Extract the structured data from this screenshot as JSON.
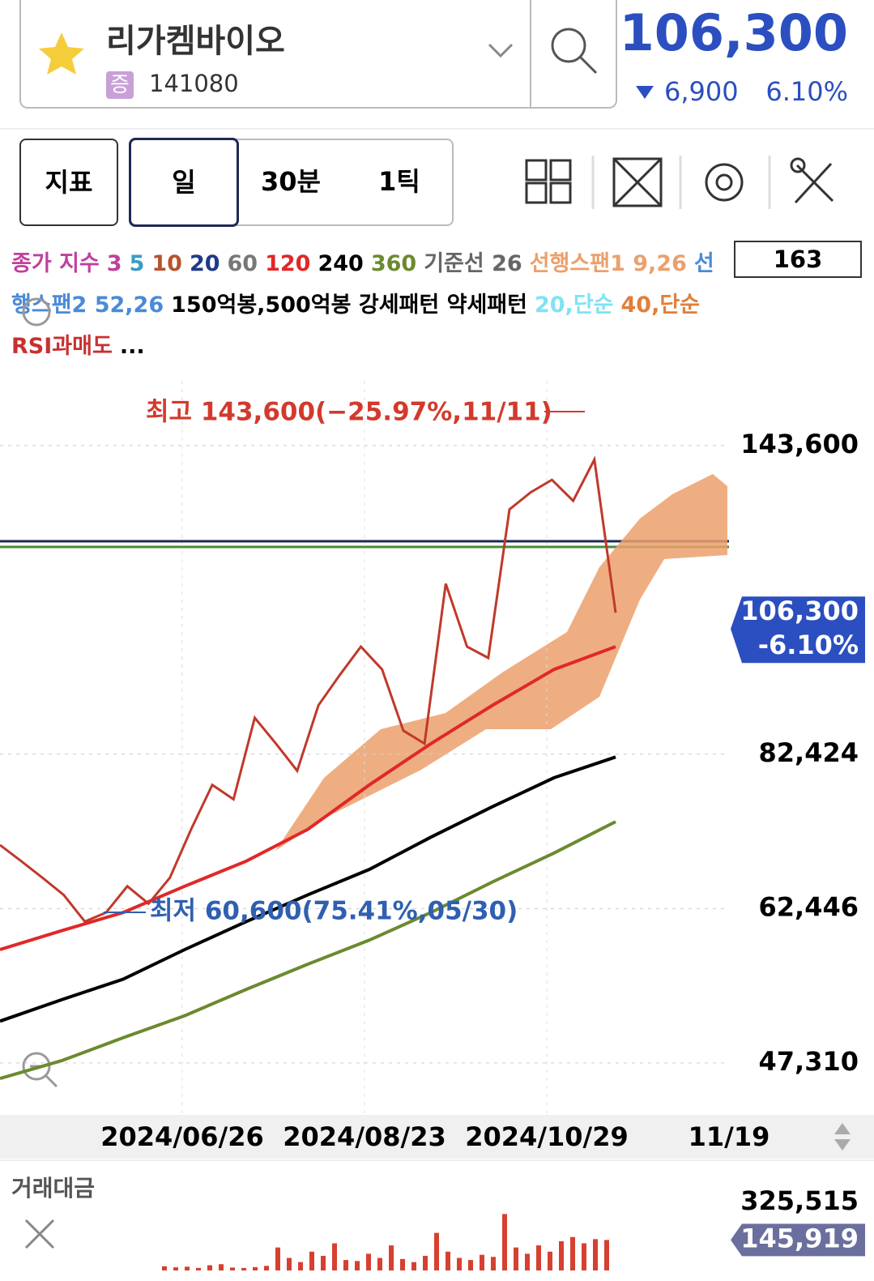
{
  "header": {
    "name": "리가켐바이오",
    "market_badge": "증",
    "code": "141080",
    "price": "106,300",
    "change": "6,900",
    "change_rate": "6.10%"
  },
  "toolbar": {
    "indicator_button": "지표",
    "periods": [
      "일",
      "30분",
      "1틱"
    ]
  },
  "legend": {
    "items": [
      {
        "text": "종가 지수",
        "color": "#c0409e"
      },
      {
        "text": "3",
        "color": "#c0409e"
      },
      {
        "text": "5",
        "color": "#3a9cc4"
      },
      {
        "text": "10",
        "color": "#b5542f"
      },
      {
        "text": "20",
        "color": "#1e3a8a"
      },
      {
        "text": "60",
        "color": "#777777"
      },
      {
        "text": "120",
        "color": "#e02828"
      },
      {
        "text": "240",
        "color": "#000000"
      },
      {
        "text": "360",
        "color": "#6b8a2f"
      },
      {
        "text": "기준선 26",
        "color": "#666666"
      },
      {
        "text": "선행스팬1 9,26",
        "color": "#eba06c"
      },
      {
        "text": "선행스팬2 52,26",
        "color": "#4a8ad8"
      },
      {
        "text": "150억봉,500억봉 강세패턴 약세패턴",
        "color": "#000000"
      },
      {
        "text": "20,단순",
        "color": "#7fe3f2"
      },
      {
        "text": "40,단순",
        "color": "#e07f3c"
      },
      {
        "text": "RSI과매도",
        "color": "#c83030"
      },
      {
        "text": "...",
        "color": "#000000"
      }
    ],
    "count": "163"
  },
  "chart_data": {
    "type": "line",
    "log_scale": true,
    "ylim": [
      43150,
      161300
    ],
    "yticks": [
      {
        "value": 143600,
        "label": "143,600"
      },
      {
        "value": 82424,
        "label": "82,424"
      },
      {
        "value": 62446,
        "label": "62,446"
      },
      {
        "value": 47310,
        "label": "47,310"
      }
    ],
    "price_tag": {
      "value": 106300,
      "label": "106,300",
      "change": "-6.10%"
    },
    "x_labels": [
      "2024/06/26",
      "2024/08/23",
      "2024/10/29",
      "11/19"
    ],
    "annotations": [
      {
        "text": "최고 143,600(−25.97%,11/11)",
        "color": "#d23a2c"
      },
      {
        "text": "최저 60,600(75.41%,05/30)",
        "color": "#2f5fb0"
      }
    ],
    "series": [
      {
        "name": "종가",
        "color": "#c0392b",
        "values": [
          70000,
          68000,
          66000,
          64000,
          61000,
          62000,
          65000,
          63000,
          66000,
          72000,
          78000,
          76000,
          88000,
          84000,
          80000,
          90000,
          95000,
          100000,
          96000,
          86000,
          84000,
          112000,
          100000,
          98000,
          128000,
          132000,
          135000,
          130000,
          140000,
          106300
        ]
      },
      {
        "name": "120",
        "color": "#e02828",
        "values": [
          58000,
          60000,
          62000,
          65000,
          68000,
          72000,
          78000,
          84000,
          90000,
          96000,
          100000
        ]
      },
      {
        "name": "240",
        "color": "#000000",
        "values": [
          51000,
          53000,
          55000,
          58000,
          61000,
          64000,
          67000,
          71000,
          75000,
          79000,
          82000
        ]
      },
      {
        "name": "360",
        "color": "#6b8a2f",
        "values": [
          46000,
          47500,
          49500,
          51500,
          54000,
          56500,
          59000,
          62000,
          65500,
          69000,
          73000
        ]
      }
    ]
  },
  "volume_chart": {
    "type": "bar",
    "title": "거래대금",
    "color": "#d64030",
    "ylim": [
      0,
      380000
    ],
    "yticks": [
      {
        "value": 325515,
        "label": "325,515"
      }
    ],
    "current": {
      "value": 145919,
      "label": "145,919"
    },
    "values": [
      20000,
      15000,
      18000,
      12000,
      25000,
      30000,
      14000,
      12000,
      16000,
      22000,
      110000,
      60000,
      40000,
      90000,
      70000,
      130000,
      50000,
      45000,
      80000,
      60000,
      120000,
      55000,
      40000,
      70000,
      180000,
      90000,
      60000,
      50000,
      75000,
      65000,
      270000,
      110000,
      80000,
      120000,
      90000,
      140000,
      160000,
      130000,
      150000,
      145919
    ]
  }
}
